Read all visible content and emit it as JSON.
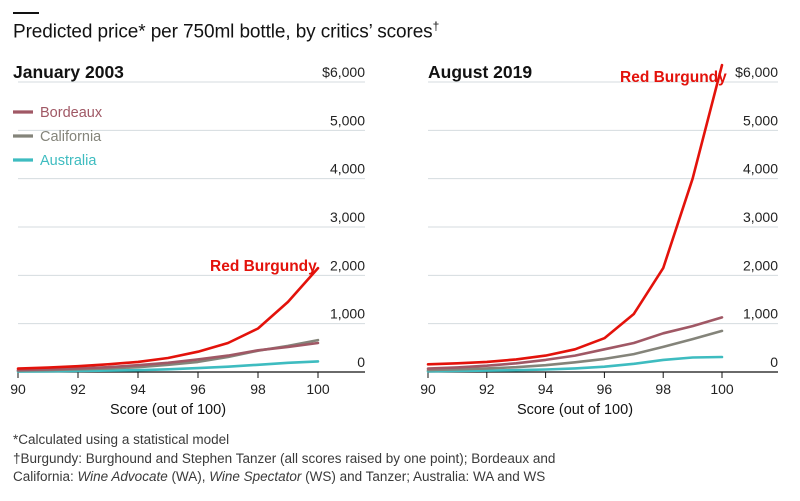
{
  "header": {
    "title": "Predicted price* per 750ml bottle, by critics’ scores",
    "title_mark": "†"
  },
  "legend": [
    {
      "label": "Bordeaux",
      "color": "#a05865"
    },
    {
      "label": "California",
      "color": "#84847a"
    },
    {
      "label": "Australia",
      "color": "#3ebcc0"
    }
  ],
  "notes": {
    "line1": "*Calculated using a statistical model",
    "line2_mark": "†",
    "line2": "Burgundy: Burghound and Stephen Tanzer (all scores raised by one point); Bordeaux and",
    "line3_a": "California: ",
    "line3_b": "Wine Advocate",
    "line3_c": " (WA), ",
    "line3_d": "Wine Spectator",
    "line3_e": " (WS) and Tanzer; Australia: WA and WS"
  },
  "chart_data": [
    {
      "type": "line",
      "title": "January 2003",
      "xlabel": "Score (out of 100)",
      "ylabel": "",
      "xlim": [
        90,
        100
      ],
      "ylim": [
        0,
        6000
      ],
      "x_ticks": [
        90,
        92,
        94,
        96,
        98,
        100
      ],
      "y_ticks": [
        0,
        1000,
        2000,
        3000,
        4000,
        5000,
        6000
      ],
      "y_tick_labels": [
        "0",
        "1,000",
        "2,000",
        "3,000",
        "4,000",
        "5,000",
        "$6,000"
      ],
      "x": [
        90,
        91,
        92,
        93,
        94,
        95,
        96,
        97,
        98,
        99,
        100
      ],
      "series": [
        {
          "name": "Red Burgundy",
          "color": "#e3120b",
          "values": [
            70,
            90,
            120,
            160,
            210,
            290,
            420,
            600,
            900,
            1450,
            2150
          ]
        },
        {
          "name": "Bordeaux",
          "color": "#a05865",
          "values": [
            40,
            55,
            75,
            100,
            140,
            190,
            260,
            340,
            450,
            520,
            600
          ]
        },
        {
          "name": "California",
          "color": "#84847a",
          "values": [
            30,
            40,
            55,
            75,
            100,
            150,
            210,
            310,
            440,
            540,
            660
          ]
        },
        {
          "name": "Australia",
          "color": "#3ebcc0",
          "values": [
            10,
            14,
            20,
            28,
            38,
            55,
            80,
            110,
            150,
            190,
            220
          ]
        }
      ],
      "annotation": "Red Burgundy"
    },
    {
      "type": "line",
      "title": "August 2019",
      "xlabel": "Score (out of 100)",
      "ylabel": "",
      "xlim": [
        90,
        100
      ],
      "ylim": [
        0,
        6000
      ],
      "x_ticks": [
        90,
        92,
        94,
        96,
        98,
        100
      ],
      "y_ticks": [
        0,
        1000,
        2000,
        3000,
        4000,
        5000,
        6000
      ],
      "y_tick_labels": [
        "0",
        "1,000",
        "2,000",
        "3,000",
        "4,000",
        "5,000",
        "$6,000"
      ],
      "x": [
        90,
        91,
        92,
        93,
        94,
        95,
        96,
        97,
        98,
        99,
        100
      ],
      "series": [
        {
          "name": "Red Burgundy",
          "color": "#e3120b",
          "values": [
            160,
            180,
            210,
            260,
            340,
            470,
            700,
            1200,
            2150,
            4000,
            6350
          ]
        },
        {
          "name": "Bordeaux",
          "color": "#a05865",
          "values": [
            70,
            95,
            130,
            180,
            250,
            340,
            470,
            600,
            800,
            950,
            1130
          ]
        },
        {
          "name": "California",
          "color": "#84847a",
          "values": [
            40,
            55,
            75,
            100,
            140,
            200,
            270,
            370,
            520,
            680,
            850
          ]
        },
        {
          "name": "Australia",
          "color": "#3ebcc0",
          "values": [
            15,
            20,
            28,
            38,
            52,
            75,
            110,
            170,
            250,
            300,
            310
          ]
        }
      ],
      "annotation": "Red Burgundy"
    }
  ]
}
